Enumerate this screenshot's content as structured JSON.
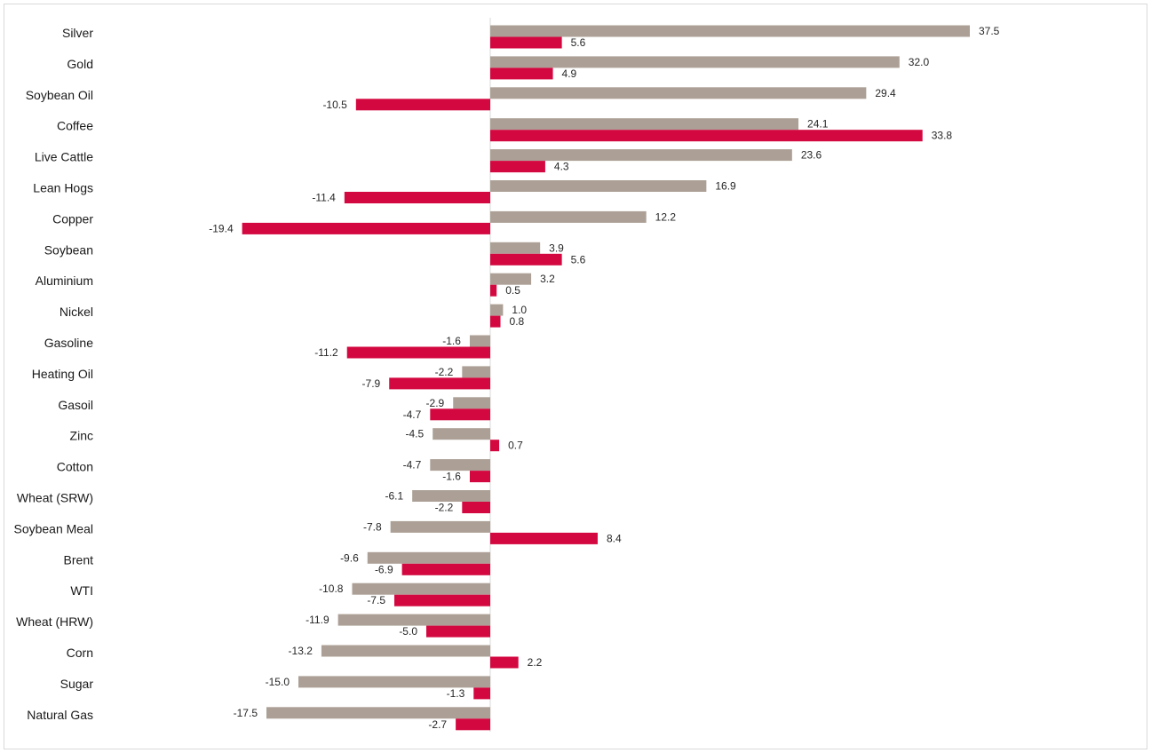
{
  "chart_data": {
    "type": "bar",
    "orientation": "horizontal",
    "categories": [
      "Silver",
      "Gold",
      "Soybean Oil",
      "Coffee",
      "Live Cattle",
      "Lean Hogs",
      "Copper",
      "Soybean",
      "Aluminium",
      "Nickel",
      "Gasoline",
      "Heating Oil",
      "Gasoil",
      "Zinc",
      "Cotton",
      "Wheat (SRW)",
      "Soybean Meal",
      "Brent",
      "WTI",
      "Wheat (HRW)",
      "Corn",
      "Sugar",
      "Natural Gas"
    ],
    "series": [
      {
        "color": "#aca096",
        "values": [
          37.5,
          32.0,
          29.4,
          24.1,
          23.6,
          16.9,
          12.2,
          3.9,
          3.2,
          1.0,
          -1.6,
          -2.2,
          -2.9,
          -4.5,
          -4.7,
          -6.1,
          -7.8,
          -9.6,
          -10.8,
          -11.9,
          -13.2,
          -15.0,
          -17.5
        ],
        "labels": [
          "37.5",
          "32.0",
          "29.4",
          "24.1",
          "23.6",
          "16.9",
          "12.2",
          "3.9",
          "3.2",
          "1.0",
          "-1.6",
          "-2.2",
          "-2.9",
          "-4.5",
          "-4.7",
          "-6.1",
          "-7.8",
          "-9.6",
          "-10.8",
          "-11.9",
          "-13.2",
          "-15.0",
          "-17.5"
        ]
      },
      {
        "color": "#d40840",
        "values": [
          5.6,
          4.9,
          -10.5,
          33.8,
          4.3,
          -11.4,
          -19.4,
          5.6,
          0.5,
          0.8,
          -11.2,
          -7.9,
          -4.7,
          0.7,
          -1.6,
          -2.2,
          8.4,
          -6.9,
          -7.5,
          -5.0,
          2.2,
          -1.3,
          -2.7
        ],
        "labels": [
          "5.6",
          "4.9",
          "-10.5",
          "33.8",
          "4.3",
          "-11.4",
          "-19.4",
          "5.6",
          "0.5",
          "0.8",
          "-11.2",
          "-7.9",
          "-4.7",
          "0.7",
          "-1.6",
          "-2.2",
          "8.4",
          "-6.9",
          "-7.5",
          "-5.0",
          "2.2",
          "-1.3",
          "-2.7"
        ]
      }
    ],
    "xlim": [
      -38.3,
      37.5
    ],
    "grid": false,
    "legend": "none",
    "data_labels": true
  }
}
